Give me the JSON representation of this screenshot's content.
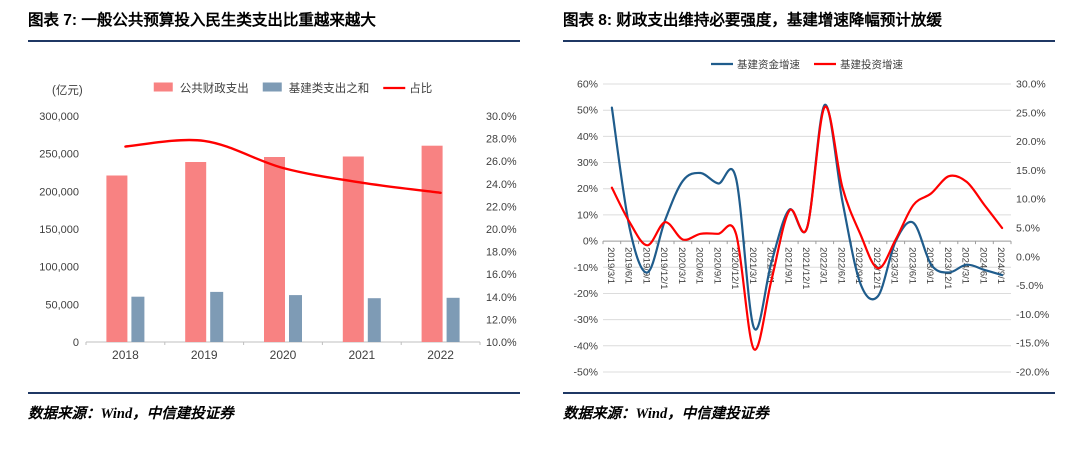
{
  "page": {
    "background": "#FFFFFF",
    "rule_color": "#1F3864"
  },
  "figures": [
    {
      "id": "figure-7",
      "title": "图表 7: 一般公共预算投入民生类支出比重越来越大",
      "source": "数据来源：Wind，中信建投证券"
    },
    {
      "id": "figure-8",
      "title": "图表 8: 财政支出维持必要强度，基建增速降幅预计放缓",
      "source": "数据来源：Wind，中信建投证券"
    }
  ],
  "chart_data": [
    {
      "type": "bar",
      "subtype": "bar+line combo, dual axis",
      "title": "一般公共预算投入民生类支出比重越来越大",
      "unit_label": "(亿元)",
      "categories": [
        "2018",
        "2019",
        "2020",
        "2021",
        "2022"
      ],
      "series": [
        {
          "name": "公共财政支出",
          "type": "bar",
          "axis": "left",
          "color": "#F88282",
          "values": [
            221000,
            238900,
            245600,
            246300,
            260600
          ]
        },
        {
          "name": "基建类支出之和",
          "type": "bar",
          "axis": "left",
          "color": "#7E9BB5",
          "values": [
            60100,
            66500,
            62200,
            58200,
            58700
          ]
        },
        {
          "name": "占比",
          "type": "line",
          "axis": "right",
          "color": "#FF0000",
          "values": [
            27.3,
            27.8,
            25.4,
            24.1,
            23.2
          ]
        }
      ],
      "y_left": {
        "min": 0,
        "max": 300000,
        "step": 50000,
        "tick_format": "thousands"
      },
      "y_right": {
        "min": 10,
        "max": 30,
        "step": 2,
        "tick_format": "percent1"
      },
      "grid": false,
      "legend_position": "top"
    },
    {
      "type": "line",
      "subtype": "smoothed lines, dual axis",
      "title": "财政支出维持必要强度，基建增速降幅预计放缓",
      "x": [
        "2019/3/1",
        "2019/6/1",
        "2019/9/1",
        "2019/12/1",
        "2020/3/1",
        "2020/6/1",
        "2020/9/1",
        "2020/12/1",
        "2021/3/1",
        "2021/6/1",
        "2021/9/1",
        "2021/12/1",
        "2022/3/1",
        "2022/6/1",
        "2022/9/1",
        "2022/12/1",
        "2023/3/1",
        "2023/6/1",
        "2023/9/1",
        "2023/12/1",
        "2024/3/1",
        "2024/6/1",
        "2024/9/1"
      ],
      "series": [
        {
          "name": "基建资金增速",
          "axis": "left",
          "color": "#1F5C8C",
          "values": [
            51,
            5,
            -12,
            8,
            23,
            26,
            22,
            24,
            -33,
            -8,
            12,
            5,
            52,
            15,
            -16,
            -21,
            0,
            7,
            -9,
            -12,
            -9,
            -11,
            -13
          ]
        },
        {
          "name": "基建投资增速",
          "axis": "right",
          "color": "#FF0000",
          "values": [
            12,
            6,
            2,
            6,
            3,
            4,
            4,
            4,
            -16,
            -4,
            8,
            5,
            26,
            12,
            4,
            -2,
            3,
            9,
            11,
            14,
            13,
            9,
            5
          ]
        }
      ],
      "y_left": {
        "min": -50,
        "max": 60,
        "step": 10,
        "tick_format": "percent0"
      },
      "y_right": {
        "min": -20,
        "max": 30,
        "step": 5,
        "tick_format": "percent1"
      },
      "grid": true,
      "legend_position": "top"
    }
  ]
}
